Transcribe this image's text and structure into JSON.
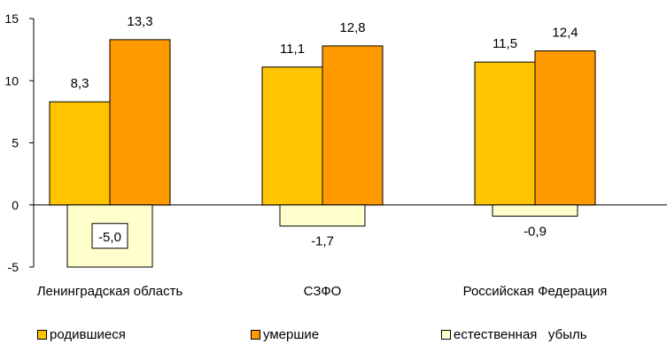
{
  "chart_data": {
    "type": "bar",
    "categories": [
      "Ленинградская область",
      "СЗФО",
      "Российская Федерация"
    ],
    "series": [
      {
        "name": "родившиеся",
        "values": [
          8.3,
          11.1,
          11.5
        ],
        "color": "#FFC400",
        "labels": [
          "8,3",
          "11,1",
          "11,5"
        ]
      },
      {
        "name": "умершие",
        "values": [
          13.3,
          12.8,
          12.4
        ],
        "color": "#FF9900",
        "labels": [
          "13,3",
          "12,8",
          "12,4"
        ]
      },
      {
        "name": "естественная   убыль",
        "values": [
          -5.0,
          -1.7,
          -0.9
        ],
        "color": "#FFFFCC",
        "labels": [
          "-5,0",
          "-1,7",
          "-0,9"
        ]
      }
    ],
    "ylim": [
      -5,
      15
    ],
    "yticks": [
      -5,
      0,
      5,
      10,
      15
    ],
    "ytick_labels": [
      "-5",
      "0",
      "5",
      "10",
      "15"
    ],
    "title": "",
    "xlabel": "",
    "ylabel": "",
    "grid": false,
    "legend_position": "bottom"
  }
}
